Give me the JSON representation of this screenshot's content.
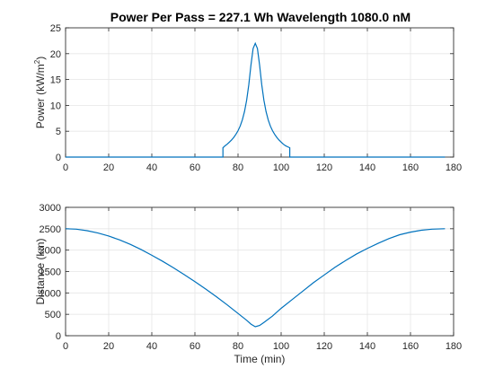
{
  "figure": {
    "title": "Power Per Pass = 227.1 Wh Wavelength 1080.0 nM"
  },
  "chart_data": [
    {
      "type": "line",
      "title": "Power Per Pass = 227.1 Wh Wavelength 1080.0 nM",
      "xlabel": "",
      "ylabel": "Power (kW/m²)",
      "ylabel_base": "Power (kW/m",
      "ylabel_sup": "2",
      "ylabel_tail": ")",
      "xlim": [
        0,
        180
      ],
      "ylim": [
        0,
        25
      ],
      "xticks": [
        0,
        20,
        40,
        60,
        80,
        100,
        120,
        140,
        160,
        180
      ],
      "yticks": [
        0,
        5,
        10,
        15,
        20,
        25
      ],
      "grid": true,
      "color": "#0072BD",
      "series": [
        {
          "x": [
            0,
            73,
            73,
            74,
            75,
            76,
            77,
            78,
            79,
            80,
            81,
            82,
            83,
            84,
            85,
            86,
            87,
            88,
            89,
            90,
            91,
            92,
            93,
            94,
            95,
            96,
            97,
            98,
            99,
            100,
            101,
            102,
            103,
            104,
            104,
            176
          ],
          "y": [
            0,
            0,
            1.8,
            2.2,
            2.5,
            2.9,
            3.3,
            3.8,
            4.4,
            5.1,
            6.0,
            7.2,
            8.8,
            11.0,
            14.0,
            17.8,
            21.0,
            22.0,
            21.0,
            17.8,
            14.0,
            11.0,
            8.8,
            7.2,
            6.0,
            5.1,
            4.4,
            3.8,
            3.3,
            2.9,
            2.5,
            2.2,
            2.0,
            1.8,
            0,
            0
          ]
        }
      ]
    },
    {
      "type": "line",
      "title": "",
      "xlabel": "Time (min)",
      "ylabel": "Distance (km)",
      "xlim": [
        0,
        180
      ],
      "ylim": [
        0,
        3000
      ],
      "xticks": [
        0,
        20,
        40,
        60,
        80,
        100,
        120,
        140,
        160,
        180
      ],
      "yticks": [
        0,
        500,
        1000,
        1500,
        2000,
        2500,
        3000
      ],
      "grid": true,
      "color": "#0072BD",
      "series": [
        {
          "x": [
            0,
            5,
            10,
            15,
            20,
            25,
            30,
            35,
            40,
            45,
            50,
            55,
            60,
            65,
            70,
            75,
            80,
            84,
            86,
            88,
            90,
            92,
            96,
            100,
            105,
            110,
            115,
            120,
            125,
            130,
            135,
            140,
            145,
            150,
            155,
            160,
            165,
            170,
            176
          ],
          "y": [
            2500,
            2490,
            2455,
            2400,
            2330,
            2240,
            2135,
            2015,
            1880,
            1740,
            1590,
            1430,
            1265,
            1090,
            910,
            720,
            520,
            360,
            270,
            210,
            240,
            310,
            460,
            640,
            840,
            1040,
            1240,
            1420,
            1600,
            1760,
            1910,
            2040,
            2160,
            2270,
            2360,
            2420,
            2465,
            2490,
            2500
          ]
        }
      ]
    }
  ]
}
